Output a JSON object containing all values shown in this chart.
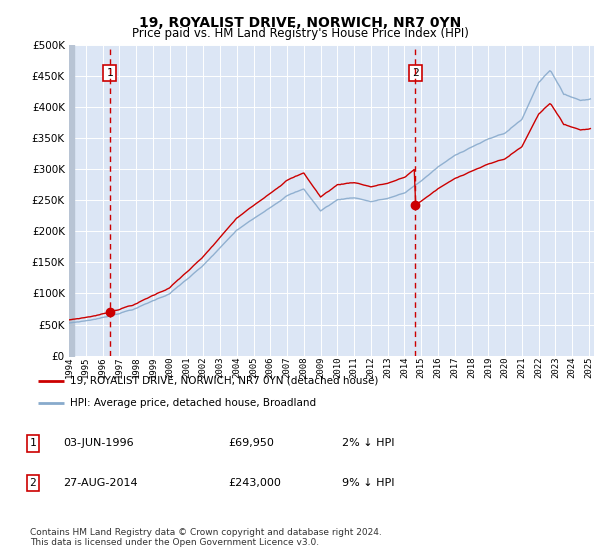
{
  "title": "19, ROYALIST DRIVE, NORWICH, NR7 0YN",
  "subtitle": "Price paid vs. HM Land Registry's House Price Index (HPI)",
  "legend_line1": "19, ROYALIST DRIVE, NORWICH, NR7 0YN (detached house)",
  "legend_line2": "HPI: Average price, detached house, Broadland",
  "transaction1_date": "03-JUN-1996",
  "transaction1_price": "£69,950",
  "transaction1_hpi": "2% ↓ HPI",
  "transaction2_date": "27-AUG-2014",
  "transaction2_price": "£243,000",
  "transaction2_hpi": "9% ↓ HPI",
  "footer": "Contains HM Land Registry data © Crown copyright and database right 2024.\nThis data is licensed under the Open Government Licence v3.0.",
  "sale_color": "#cc0000",
  "hpi_color": "#88aacc",
  "vline_color": "#cc0000",
  "background_color": "#dce6f5",
  "ylim": [
    0,
    500000
  ],
  "yticks": [
    0,
    50000,
    100000,
    150000,
    200000,
    250000,
    300000,
    350000,
    400000,
    450000,
    500000
  ],
  "sale1_year": 1996.42,
  "sale1_price": 69950,
  "sale2_year": 2014.65,
  "sale2_price": 243000,
  "xmin": 1994,
  "xmax": 2025.3
}
